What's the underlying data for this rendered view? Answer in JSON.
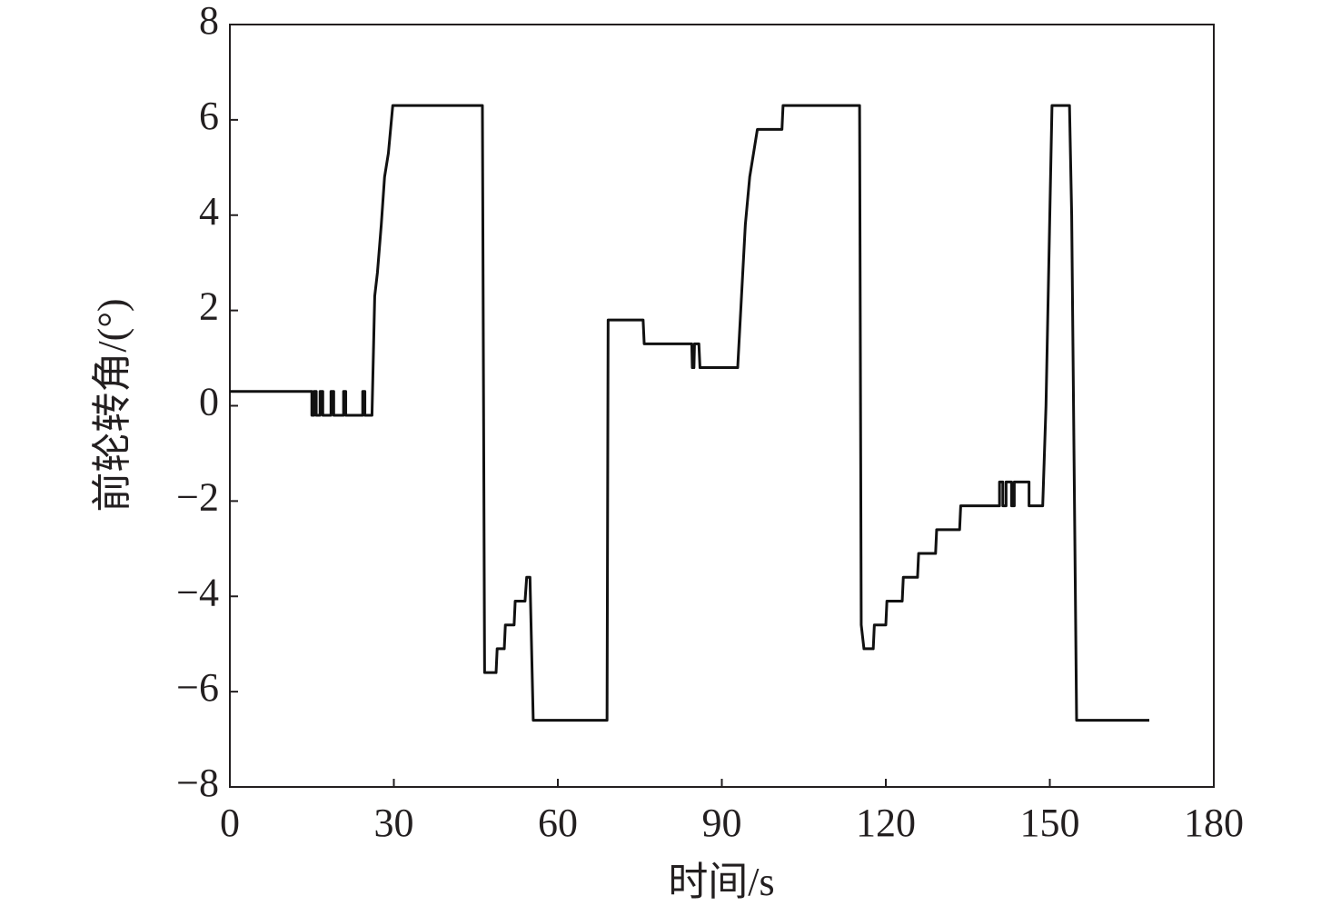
{
  "chart_data": {
    "type": "line",
    "x_label": "时间/s",
    "y_label": "前轮转角/(°)",
    "color": "#111111",
    "x": [
      0,
      15,
      15,
      15.4,
      15.4,
      15.8,
      15.8,
      16.5,
      16.5,
      17,
      17,
      18.5,
      18.5,
      19,
      19,
      20.8,
      20.8,
      21.2,
      21.2,
      24.3,
      24.3,
      24.7,
      24.7,
      26,
      26.5,
      27,
      27.7,
      28.3,
      29,
      29.8,
      46.2,
      46.6,
      48.7,
      48.9,
      50.2,
      50.4,
      52,
      52.2,
      54,
      54.3,
      54.9,
      55.5,
      69,
      69.2,
      75.6,
      75.8,
      84.5,
      84.6,
      84.9,
      85,
      85.8,
      86,
      92.9,
      93.6,
      94.3,
      95.1,
      95.8,
      96.5,
      101,
      101.2,
      115.2,
      115.5,
      116,
      117.7,
      117.9,
      120,
      120.2,
      123,
      123.2,
      125.8,
      126,
      129.1,
      129.3,
      133.5,
      133.7,
      140.8,
      140.8,
      141.4,
      141.4,
      142,
      142,
      143,
      143,
      143.5,
      143.5,
      146.2,
      146.2,
      148.7,
      149.3,
      150.4,
      153.6,
      154,
      154.9,
      168.2
    ],
    "values": [
      0.3,
      0.3,
      -0.2,
      -0.2,
      0.3,
      0.3,
      -0.2,
      -0.2,
      0.3,
      0.3,
      -0.2,
      -0.2,
      0.3,
      0.3,
      -0.2,
      -0.2,
      0.3,
      0.3,
      -0.2,
      -0.2,
      0.3,
      0.3,
      -0.2,
      -0.2,
      2.3,
      2.8,
      3.8,
      4.8,
      5.3,
      6.3,
      6.3,
      -5.6,
      -5.6,
      -5.1,
      -5.1,
      -4.6,
      -4.6,
      -4.1,
      -4.1,
      -3.6,
      -3.6,
      -6.6,
      -6.6,
      1.8,
      1.8,
      1.3,
      1.3,
      0.8,
      0.8,
      1.3,
      1.3,
      0.8,
      0.8,
      2.3,
      3.8,
      4.8,
      5.3,
      5.8,
      5.8,
      6.3,
      6.3,
      -4.6,
      -5.1,
      -5.1,
      -4.6,
      -4.6,
      -4.1,
      -4.1,
      -3.6,
      -3.6,
      -3.1,
      -3.1,
      -2.6,
      -2.6,
      -2.1,
      -2.1,
      -1.6,
      -1.6,
      -2.1,
      -2.1,
      -1.6,
      -1.6,
      -2.1,
      -2.1,
      -1.6,
      -1.6,
      -2.1,
      -2.1,
      0,
      6.3,
      6.3,
      4,
      -6.6,
      -6.6
    ],
    "xlim": [
      0,
      180
    ],
    "xticks": [
      0,
      30,
      60,
      90,
      120,
      150,
      180
    ],
    "ylim": [
      -8,
      8
    ],
    "yticks": [
      {
        "value": -8,
        "label": "−8"
      },
      {
        "value": -6,
        "label": "−6"
      },
      {
        "value": -4,
        "label": "−4"
      },
      {
        "value": -2,
        "label": "−2"
      },
      0,
      2,
      4,
      6,
      8
    ]
  }
}
